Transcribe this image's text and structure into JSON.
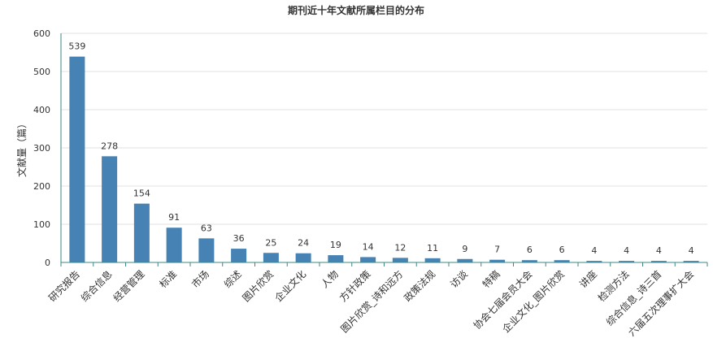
{
  "chart_data": {
    "type": "bar",
    "title": "期刊近十年文献所属栏目的分布",
    "ylabel": "文献量（篇）",
    "xlabel": "",
    "ylim": [
      0,
      600
    ],
    "yticks": [
      0,
      100,
      200,
      300,
      400,
      500,
      600
    ],
    "grid": true,
    "legend": "none",
    "bar_color": "#4682b4",
    "categories": [
      "研究报告",
      "综合信息",
      "经营管理",
      "标准",
      "市场",
      "综述",
      "图片欣赏",
      "企业文化",
      "人物",
      "方针政策",
      "图片欣赏_诗和远方",
      "政策法规",
      "访谈",
      "特稿",
      "协会七届会员大会",
      "企业文化_图片欣赏",
      "讲座",
      "检测方法",
      "综合信息_诗三首",
      "六届五次理事扩大会"
    ],
    "values": [
      539,
      278,
      154,
      91,
      63,
      36,
      25,
      24,
      19,
      14,
      12,
      11,
      9,
      7,
      6,
      6,
      4,
      4,
      4,
      4
    ]
  }
}
